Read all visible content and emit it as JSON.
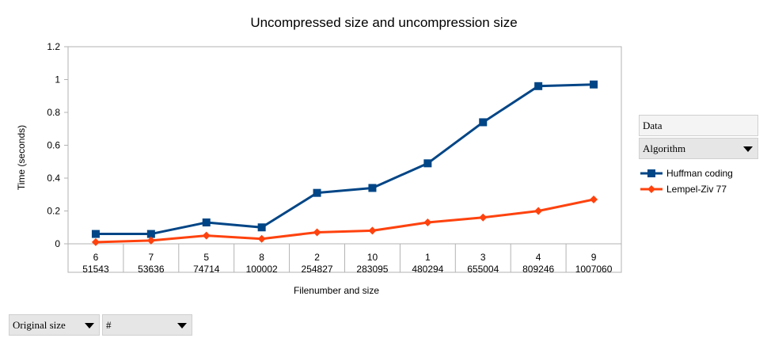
{
  "chart_data": {
    "type": "line",
    "title": "Uncompressed size and uncompression size",
    "xlabel": "Filenumber and size",
    "ylabel": "Time (seconds)",
    "ylim": [
      0,
      1.2
    ],
    "yticks": [
      "0",
      "0.2",
      "0.4",
      "0.6",
      "0.8",
      "1",
      "1.2"
    ],
    "categories": [
      [
        "6",
        "51543"
      ],
      [
        "7",
        "53636"
      ],
      [
        "5",
        "74714"
      ],
      [
        "8",
        "100002"
      ],
      [
        "2",
        "254827"
      ],
      [
        "10",
        "283095"
      ],
      [
        "1",
        "480294"
      ],
      [
        "3",
        "655004"
      ],
      [
        "4",
        "809246"
      ],
      [
        "9",
        "1007060"
      ]
    ],
    "series": [
      {
        "name": "Huffman coding",
        "color": "#004586",
        "marker": "square",
        "values": [
          0.06,
          0.06,
          0.13,
          0.1,
          0.31,
          0.34,
          0.49,
          0.74,
          0.96,
          0.97
        ]
      },
      {
        "name": "Lempel-Ziv 77",
        "color": "#ff420e",
        "marker": "diamond",
        "values": [
          0.01,
          0.02,
          0.05,
          0.03,
          0.07,
          0.08,
          0.13,
          0.16,
          0.2,
          0.27
        ]
      }
    ],
    "grid": false,
    "legend_position": "right"
  },
  "pivot": {
    "data_field": "Data",
    "column_field": "Algorithm",
    "row_field": "Original size",
    "row_field_2": "#"
  }
}
